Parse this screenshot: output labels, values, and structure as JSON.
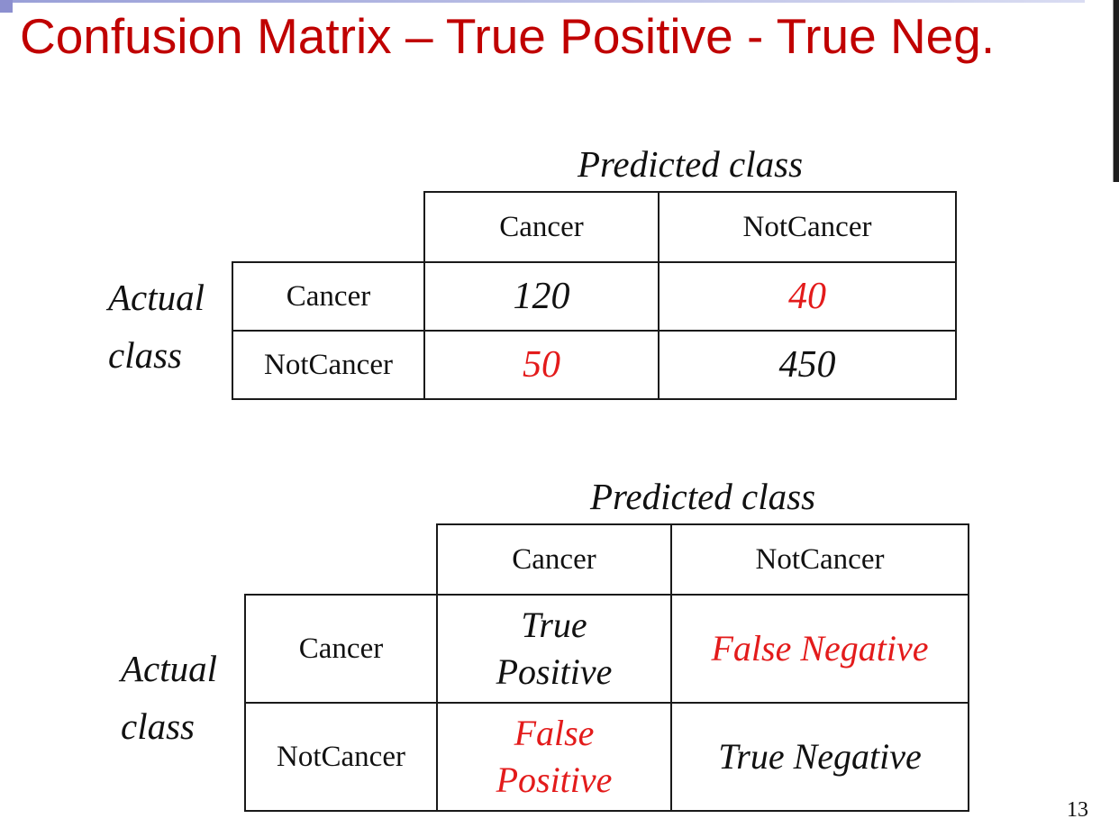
{
  "slide": {
    "title": "Confusion Matrix – True Positive - True Neg.",
    "page_number": "13"
  },
  "matrix_counts": {
    "predicted_label": "Predicted class",
    "actual_label_line1": "Actual",
    "actual_label_line2": "class",
    "col_headers": [
      "Cancer",
      "NotCancer"
    ],
    "row_headers": [
      "Cancer",
      "NotCancer"
    ],
    "values": [
      [
        "120",
        "40"
      ],
      [
        "50",
        "450"
      ]
    ]
  },
  "matrix_terms": {
    "predicted_label": "Predicted class",
    "actual_label_line1": "Actual",
    "actual_label_line2": "class",
    "col_headers": [
      "Cancer",
      "NotCancer"
    ],
    "row_headers": [
      "Cancer",
      "NotCancer"
    ],
    "cells": [
      [
        {
          "line1": "True",
          "line2": "Positive"
        },
        {
          "text": "False Negative"
        }
      ],
      [
        {
          "line1": "False",
          "line2": "Positive"
        },
        {
          "text": "True Negative"
        }
      ]
    ]
  },
  "colors": {
    "title": "#c00000",
    "highlight": "#e31b1b",
    "text": "#111111"
  }
}
